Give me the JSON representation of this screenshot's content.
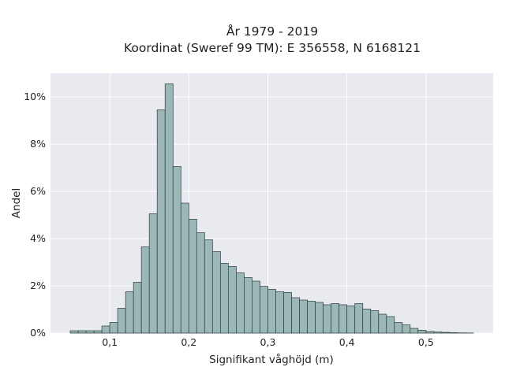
{
  "chart_data": {
    "type": "bar",
    "title": [
      "År 1979 - 2019",
      "Koordinat (Sweref 99 TM): E 356558, N 6168121"
    ],
    "xlabel": "Signifikant våghöjd (m)",
    "ylabel": "Andel",
    "xlim": [
      0.025,
      0.585
    ],
    "ylim": [
      0,
      11
    ],
    "grid": true,
    "x_ticks": [
      {
        "value": 0.1,
        "label": "0,1"
      },
      {
        "value": 0.2,
        "label": "0,2"
      },
      {
        "value": 0.3,
        "label": "0,3"
      },
      {
        "value": 0.4,
        "label": "0,4"
      },
      {
        "value": 0.5,
        "label": "0,5"
      }
    ],
    "y_ticks": [
      {
        "value": 0,
        "label": "0%"
      },
      {
        "value": 2,
        "label": "2%"
      },
      {
        "value": 4,
        "label": "4%"
      },
      {
        "value": 6,
        "label": "6%"
      },
      {
        "value": 8,
        "label": "8%"
      },
      {
        "value": 10,
        "label": "10%"
      }
    ],
    "bin_width": 0.01,
    "bin_starts": [
      0.05,
      0.06,
      0.07,
      0.08,
      0.09,
      0.1,
      0.11,
      0.12,
      0.13,
      0.14,
      0.15,
      0.16,
      0.17,
      0.18,
      0.19,
      0.2,
      0.21,
      0.22,
      0.23,
      0.24,
      0.25,
      0.26,
      0.27,
      0.28,
      0.29,
      0.3,
      0.31,
      0.32,
      0.33,
      0.34,
      0.35,
      0.36,
      0.37,
      0.38,
      0.39,
      0.4,
      0.41,
      0.42,
      0.43,
      0.44,
      0.45,
      0.46,
      0.47,
      0.48,
      0.49,
      0.5,
      0.51,
      0.52,
      0.53,
      0.54,
      0.55
    ],
    "values": [
      0.1,
      0.1,
      0.1,
      0.1,
      0.3,
      0.45,
      1.05,
      1.75,
      2.15,
      3.65,
      5.05,
      9.45,
      10.55,
      7.05,
      5.5,
      4.82,
      4.25,
      3.95,
      3.45,
      2.95,
      2.82,
      2.55,
      2.35,
      2.2,
      1.98,
      1.85,
      1.75,
      1.72,
      1.5,
      1.4,
      1.35,
      1.3,
      1.2,
      1.25,
      1.2,
      1.15,
      1.25,
      1.02,
      0.95,
      0.8,
      0.7,
      0.45,
      0.35,
      0.2,
      0.12,
      0.07,
      0.05,
      0.03,
      0.02,
      0.01,
      0.005
    ],
    "colors": {
      "bar_fill": "#9bb8b7",
      "bar_edge": "#3b4a48",
      "plot_bg": "#e9e9f0",
      "grid": "#ffffff"
    }
  }
}
